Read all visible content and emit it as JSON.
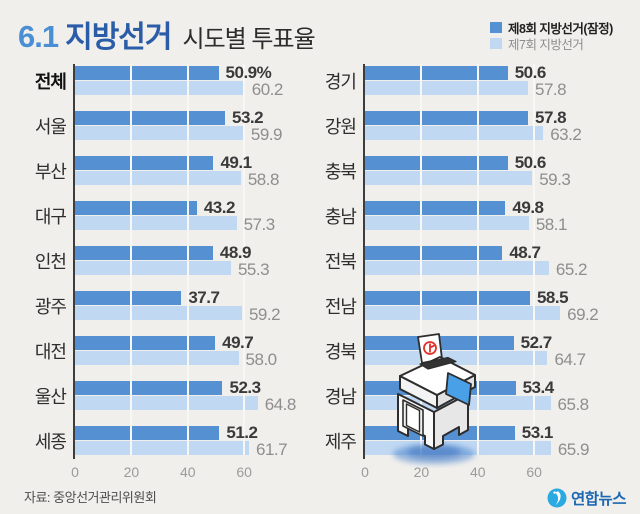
{
  "header": {
    "title": {
      "part1": "6.1",
      "part2": "지방선거",
      "part3": "시도별 투표율"
    },
    "legend": [
      {
        "label": "제8회 지방선거(잠정)",
        "color": "#5590d3",
        "emphasis": true
      },
      {
        "label": "제7회 지방선거",
        "color": "#c0d8f2",
        "emphasis": false
      }
    ]
  },
  "chart_data": [
    {
      "type": "bar",
      "orientation": "horizontal",
      "categories": [
        "전체",
        "서울",
        "부산",
        "대구",
        "인천",
        "광주",
        "대전",
        "울산",
        "세종"
      ],
      "series": [
        {
          "name": "제8회 지방선거(잠정)",
          "values": [
            50.9,
            53.2,
            49.1,
            43.2,
            48.9,
            37.7,
            49.7,
            52.3,
            51.2
          ]
        },
        {
          "name": "제7회 지방선거",
          "values": [
            60.2,
            59.9,
            58.8,
            57.3,
            55.3,
            59.2,
            58.0,
            64.8,
            61.7
          ]
        }
      ],
      "first_value_suffix": "%",
      "bold_first_category": true,
      "xlim": [
        0,
        70
      ],
      "ticks": [
        0,
        20,
        40,
        60
      ],
      "grid": true,
      "legend_position": "top-right"
    },
    {
      "type": "bar",
      "orientation": "horizontal",
      "categories": [
        "경기",
        "강원",
        "충북",
        "충남",
        "전북",
        "전남",
        "경북",
        "경남",
        "제주"
      ],
      "series": [
        {
          "name": "제8회 지방선거(잠정)",
          "values": [
            50.6,
            57.8,
            50.6,
            49.8,
            48.7,
            58.5,
            52.7,
            53.4,
            53.1
          ]
        },
        {
          "name": "제7회 지방선거",
          "values": [
            57.8,
            63.2,
            59.3,
            58.1,
            65.2,
            69.2,
            64.7,
            65.8,
            65.9
          ]
        }
      ],
      "first_value_suffix": "",
      "bold_first_category": false,
      "xlim": [
        0,
        70
      ],
      "ticks": [
        0,
        20,
        40,
        60
      ],
      "grid": true
    }
  ],
  "colors": {
    "bar_dark": "#5590d3",
    "bar_light": "#c0d8f2",
    "title_num": "#4a8fd3",
    "title_word": "#2b5ca8",
    "background": "#f0efec",
    "brand_blue": "#1c67b2",
    "brand_icon": "#2baae2"
  },
  "footer": {
    "source": "자료: 중앙선거관리위원회",
    "logo_text": "연합뉴스"
  },
  "illustration": {
    "name": "ballot-box"
  }
}
